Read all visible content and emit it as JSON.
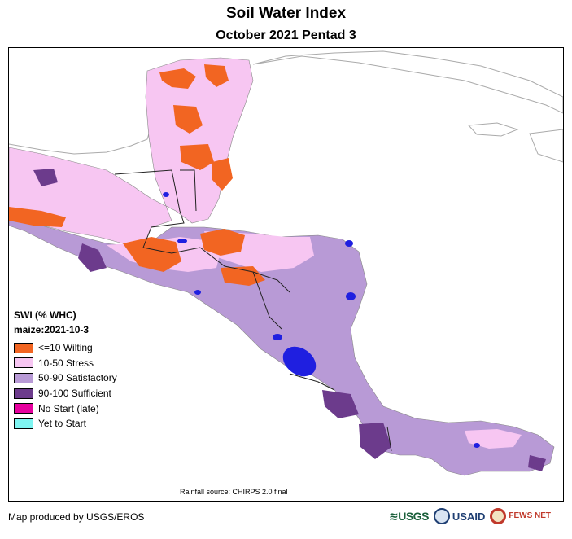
{
  "title": "Soil Water Index",
  "subtitle": "October 2021 Pentad 3",
  "legend": {
    "heading": "SWI (% WHC)",
    "crop": "maize:2021-10-3",
    "items": [
      {
        "label": "<=10 Wilting",
        "color": "#f26522"
      },
      {
        "label": "10-50 Stress",
        "color": "#f7c6f2"
      },
      {
        "label": "50-90 Satisfactory",
        "color": "#b89ad6"
      },
      {
        "label": "90-100 Sufficient",
        "color": "#6c3b8c"
      },
      {
        "label": "No Start (late)",
        "color": "#e6009e"
      },
      {
        "label": "Yet to Start",
        "color": "#7ff5f2"
      }
    ]
  },
  "colors": {
    "water_bodies": "#1f1fe0",
    "borders": "#222222",
    "outline_land": "#aaaaaa"
  },
  "credit": "Rainfall source: CHIRPS 2.0 final",
  "producer": "Map produced by USGS/EROS",
  "logos": {
    "usgs": "USGS",
    "usaid": "USAID",
    "fews": "FEWS NET"
  }
}
